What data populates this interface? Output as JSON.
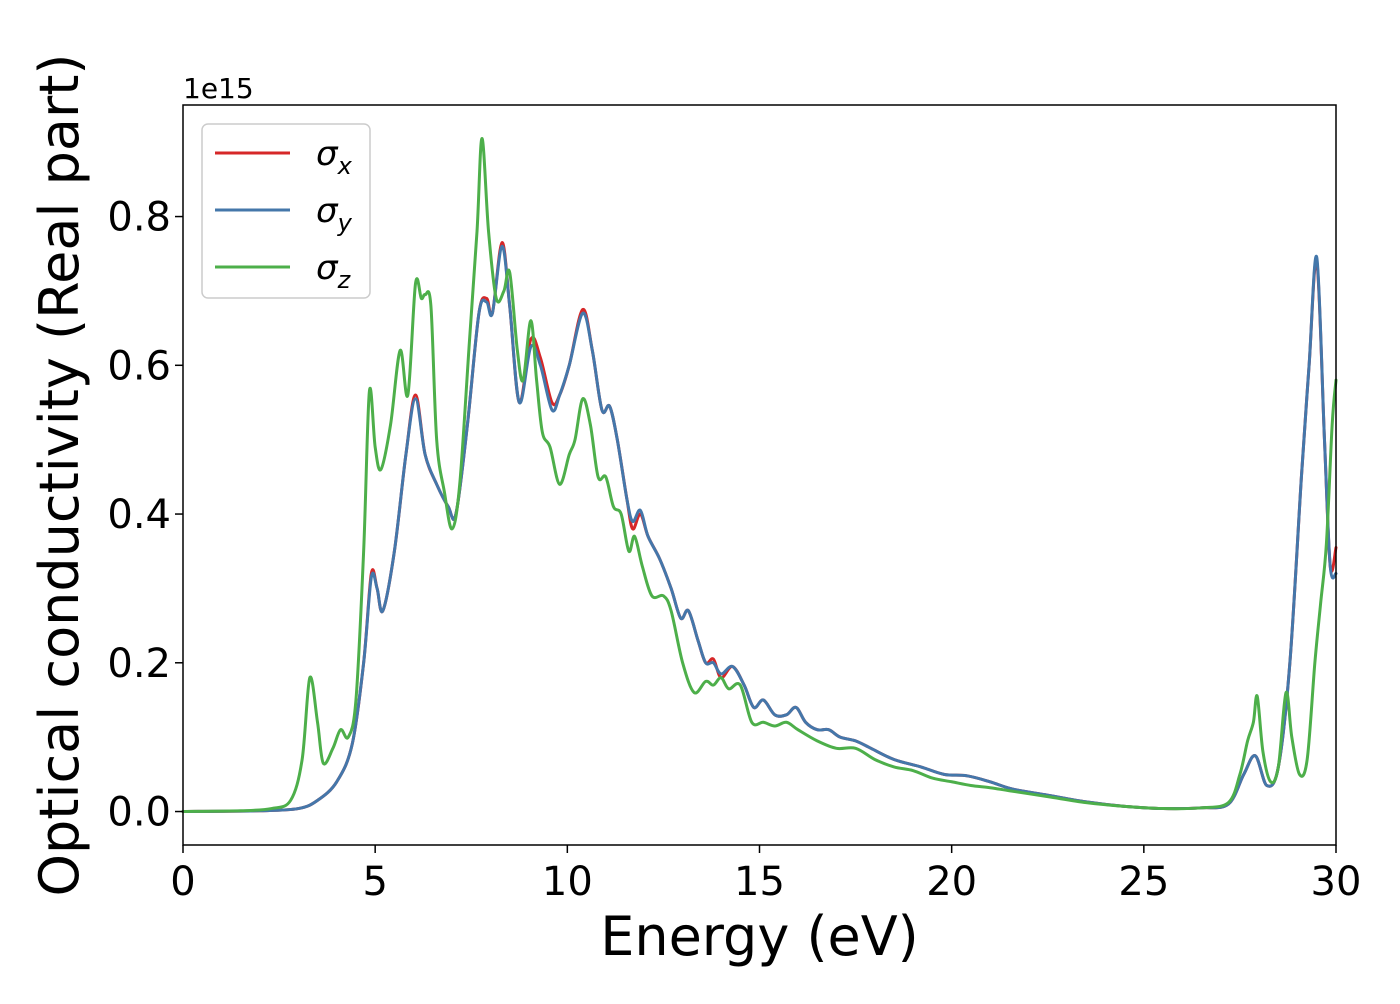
{
  "chart_data": {
    "type": "line",
    "xlabel": "Energy (eV)",
    "ylabel": "Optical conductivity (Real part)",
    "y_offset_text": "1e15",
    "xlim": [
      0,
      30
    ],
    "ylim": [
      -0.045,
      0.95
    ],
    "xticks": [
      0,
      5,
      10,
      15,
      20,
      25,
      30
    ],
    "xtick_labels": [
      "0",
      "5",
      "10",
      "15",
      "20",
      "25",
      "30"
    ],
    "yticks": [
      0.0,
      0.2,
      0.4,
      0.6,
      0.8
    ],
    "ytick_labels": [
      "0.0",
      "0.2",
      "0.4",
      "0.6",
      "0.8"
    ],
    "grid": false,
    "legend_position": "top-left",
    "series": [
      {
        "name": "σx",
        "symbol": "σ",
        "subscript": "x",
        "color": "#d62728",
        "points": [
          [
            0,
            0.0
          ],
          [
            2,
            0.001
          ],
          [
            3,
            0.004
          ],
          [
            3.5,
            0.015
          ],
          [
            4,
            0.04
          ],
          [
            4.4,
            0.09
          ],
          [
            4.7,
            0.2
          ],
          [
            4.9,
            0.32
          ],
          [
            5.05,
            0.3
          ],
          [
            5.2,
            0.27
          ],
          [
            5.5,
            0.35
          ],
          [
            5.8,
            0.48
          ],
          [
            6.05,
            0.56
          ],
          [
            6.3,
            0.48
          ],
          [
            6.6,
            0.44
          ],
          [
            6.9,
            0.41
          ],
          [
            7.1,
            0.4
          ],
          [
            7.4,
            0.52
          ],
          [
            7.7,
            0.67
          ],
          [
            7.9,
            0.69
          ],
          [
            8.05,
            0.67
          ],
          [
            8.3,
            0.765
          ],
          [
            8.5,
            0.68
          ],
          [
            8.75,
            0.55
          ],
          [
            9.05,
            0.635
          ],
          [
            9.3,
            0.61
          ],
          [
            9.6,
            0.55
          ],
          [
            9.8,
            0.56
          ],
          [
            10.05,
            0.6
          ],
          [
            10.4,
            0.675
          ],
          [
            10.65,
            0.62
          ],
          [
            10.9,
            0.54
          ],
          [
            11.1,
            0.545
          ],
          [
            11.3,
            0.5
          ],
          [
            11.55,
            0.42
          ],
          [
            11.7,
            0.38
          ],
          [
            11.9,
            0.4
          ],
          [
            12.1,
            0.37
          ],
          [
            12.4,
            0.34
          ],
          [
            12.7,
            0.3
          ],
          [
            12.95,
            0.26
          ],
          [
            13.15,
            0.27
          ],
          [
            13.4,
            0.23
          ],
          [
            13.6,
            0.2
          ],
          [
            13.8,
            0.205
          ],
          [
            14.0,
            0.18
          ],
          [
            14.3,
            0.195
          ],
          [
            14.6,
            0.17
          ],
          [
            14.85,
            0.14
          ],
          [
            15.1,
            0.15
          ],
          [
            15.4,
            0.13
          ],
          [
            15.7,
            0.13
          ],
          [
            15.95,
            0.14
          ],
          [
            16.2,
            0.12
          ],
          [
            16.5,
            0.11
          ],
          [
            16.8,
            0.11
          ],
          [
            17.1,
            0.1
          ],
          [
            17.5,
            0.095
          ],
          [
            17.9,
            0.085
          ],
          [
            18.5,
            0.07
          ],
          [
            19.2,
            0.06
          ],
          [
            19.8,
            0.05
          ],
          [
            20.4,
            0.048
          ],
          [
            21,
            0.04
          ],
          [
            21.6,
            0.03
          ],
          [
            22.5,
            0.022
          ],
          [
            23.5,
            0.013
          ],
          [
            24.5,
            0.007
          ],
          [
            25.5,
            0.004
          ],
          [
            26.5,
            0.005
          ],
          [
            27.2,
            0.01
          ],
          [
            27.6,
            0.05
          ],
          [
            27.9,
            0.075
          ],
          [
            28.2,
            0.035
          ],
          [
            28.5,
            0.06
          ],
          [
            28.8,
            0.2
          ],
          [
            29.1,
            0.45
          ],
          [
            29.3,
            0.6
          ],
          [
            29.5,
            0.74
          ],
          [
            29.7,
            0.5
          ],
          [
            29.85,
            0.33
          ],
          [
            30,
            0.355
          ]
        ]
      },
      {
        "name": "σy",
        "symbol": "σ",
        "subscript": "y",
        "color": "#4477aa",
        "points": [
          [
            0,
            0.0
          ],
          [
            2,
            0.001
          ],
          [
            3,
            0.004
          ],
          [
            3.5,
            0.015
          ],
          [
            4,
            0.04
          ],
          [
            4.4,
            0.09
          ],
          [
            4.7,
            0.2
          ],
          [
            4.9,
            0.315
          ],
          [
            5.05,
            0.3
          ],
          [
            5.2,
            0.27
          ],
          [
            5.5,
            0.35
          ],
          [
            5.8,
            0.48
          ],
          [
            6.05,
            0.555
          ],
          [
            6.3,
            0.48
          ],
          [
            6.6,
            0.44
          ],
          [
            6.9,
            0.41
          ],
          [
            7.1,
            0.4
          ],
          [
            7.4,
            0.52
          ],
          [
            7.7,
            0.67
          ],
          [
            7.9,
            0.685
          ],
          [
            8.05,
            0.67
          ],
          [
            8.3,
            0.76
          ],
          [
            8.5,
            0.68
          ],
          [
            8.75,
            0.55
          ],
          [
            9.05,
            0.625
          ],
          [
            9.3,
            0.6
          ],
          [
            9.6,
            0.54
          ],
          [
            9.8,
            0.56
          ],
          [
            10.05,
            0.6
          ],
          [
            10.4,
            0.67
          ],
          [
            10.65,
            0.62
          ],
          [
            10.9,
            0.54
          ],
          [
            11.1,
            0.545
          ],
          [
            11.3,
            0.5
          ],
          [
            11.55,
            0.42
          ],
          [
            11.7,
            0.39
          ],
          [
            11.9,
            0.405
          ],
          [
            12.1,
            0.37
          ],
          [
            12.4,
            0.34
          ],
          [
            12.7,
            0.3
          ],
          [
            12.95,
            0.26
          ],
          [
            13.15,
            0.27
          ],
          [
            13.4,
            0.23
          ],
          [
            13.6,
            0.2
          ],
          [
            13.8,
            0.2
          ],
          [
            14.0,
            0.185
          ],
          [
            14.3,
            0.195
          ],
          [
            14.6,
            0.17
          ],
          [
            14.85,
            0.14
          ],
          [
            15.1,
            0.15
          ],
          [
            15.4,
            0.13
          ],
          [
            15.7,
            0.13
          ],
          [
            15.95,
            0.14
          ],
          [
            16.2,
            0.12
          ],
          [
            16.5,
            0.11
          ],
          [
            16.8,
            0.11
          ],
          [
            17.1,
            0.1
          ],
          [
            17.5,
            0.095
          ],
          [
            17.9,
            0.085
          ],
          [
            18.5,
            0.07
          ],
          [
            19.2,
            0.06
          ],
          [
            19.8,
            0.05
          ],
          [
            20.4,
            0.048
          ],
          [
            21,
            0.04
          ],
          [
            21.6,
            0.03
          ],
          [
            22.5,
            0.022
          ],
          [
            23.5,
            0.013
          ],
          [
            24.5,
            0.007
          ],
          [
            25.5,
            0.004
          ],
          [
            26.5,
            0.005
          ],
          [
            27.2,
            0.01
          ],
          [
            27.6,
            0.05
          ],
          [
            27.9,
            0.075
          ],
          [
            28.2,
            0.035
          ],
          [
            28.5,
            0.06
          ],
          [
            28.8,
            0.2
          ],
          [
            29.1,
            0.45
          ],
          [
            29.3,
            0.6
          ],
          [
            29.5,
            0.745
          ],
          [
            29.7,
            0.5
          ],
          [
            29.85,
            0.33
          ],
          [
            30,
            0.32
          ]
        ]
      },
      {
        "name": "σz",
        "symbol": "σ",
        "subscript": "z",
        "color": "#4daf4a",
        "points": [
          [
            0,
            0.0
          ],
          [
            1.5,
            0.001
          ],
          [
            2.3,
            0.004
          ],
          [
            2.8,
            0.015
          ],
          [
            3.1,
            0.07
          ],
          [
            3.3,
            0.18
          ],
          [
            3.5,
            0.12
          ],
          [
            3.65,
            0.065
          ],
          [
            3.9,
            0.085
          ],
          [
            4.1,
            0.11
          ],
          [
            4.3,
            0.1
          ],
          [
            4.5,
            0.15
          ],
          [
            4.7,
            0.35
          ],
          [
            4.85,
            0.565
          ],
          [
            5.0,
            0.49
          ],
          [
            5.15,
            0.46
          ],
          [
            5.4,
            0.52
          ],
          [
            5.65,
            0.62
          ],
          [
            5.85,
            0.56
          ],
          [
            6.05,
            0.71
          ],
          [
            6.2,
            0.69
          ],
          [
            6.3,
            0.695
          ],
          [
            6.45,
            0.68
          ],
          [
            6.6,
            0.5
          ],
          [
            6.8,
            0.43
          ],
          [
            7.0,
            0.38
          ],
          [
            7.2,
            0.44
          ],
          [
            7.45,
            0.63
          ],
          [
            7.65,
            0.78
          ],
          [
            7.78,
            0.905
          ],
          [
            7.95,
            0.78
          ],
          [
            8.15,
            0.69
          ],
          [
            8.35,
            0.7
          ],
          [
            8.5,
            0.725
          ],
          [
            8.7,
            0.62
          ],
          [
            8.85,
            0.58
          ],
          [
            9.05,
            0.66
          ],
          [
            9.2,
            0.58
          ],
          [
            9.35,
            0.51
          ],
          [
            9.55,
            0.49
          ],
          [
            9.8,
            0.44
          ],
          [
            10.05,
            0.48
          ],
          [
            10.2,
            0.5
          ],
          [
            10.4,
            0.555
          ],
          [
            10.6,
            0.52
          ],
          [
            10.8,
            0.45
          ],
          [
            11.0,
            0.45
          ],
          [
            11.2,
            0.41
          ],
          [
            11.4,
            0.4
          ],
          [
            11.6,
            0.35
          ],
          [
            11.75,
            0.37
          ],
          [
            11.95,
            0.33
          ],
          [
            12.2,
            0.29
          ],
          [
            12.5,
            0.29
          ],
          [
            12.7,
            0.27
          ],
          [
            13.0,
            0.2
          ],
          [
            13.3,
            0.16
          ],
          [
            13.6,
            0.175
          ],
          [
            13.8,
            0.17
          ],
          [
            14.0,
            0.18
          ],
          [
            14.2,
            0.165
          ],
          [
            14.5,
            0.17
          ],
          [
            14.8,
            0.12
          ],
          [
            15.1,
            0.12
          ],
          [
            15.4,
            0.115
          ],
          [
            15.7,
            0.12
          ],
          [
            16.0,
            0.11
          ],
          [
            16.5,
            0.095
          ],
          [
            17.0,
            0.085
          ],
          [
            17.5,
            0.085
          ],
          [
            18.0,
            0.07
          ],
          [
            18.5,
            0.06
          ],
          [
            19.0,
            0.055
          ],
          [
            19.5,
            0.045
          ],
          [
            20.0,
            0.04
          ],
          [
            20.5,
            0.035
          ],
          [
            21.0,
            0.032
          ],
          [
            21.5,
            0.028
          ],
          [
            22.5,
            0.02
          ],
          [
            23.5,
            0.012
          ],
          [
            24.5,
            0.007
          ],
          [
            25.5,
            0.004
          ],
          [
            26.5,
            0.005
          ],
          [
            27.2,
            0.012
          ],
          [
            27.5,
            0.05
          ],
          [
            27.7,
            0.095
          ],
          [
            27.85,
            0.12
          ],
          [
            27.95,
            0.155
          ],
          [
            28.1,
            0.08
          ],
          [
            28.3,
            0.04
          ],
          [
            28.5,
            0.06
          ],
          [
            28.7,
            0.16
          ],
          [
            28.85,
            0.1
          ],
          [
            29.05,
            0.05
          ],
          [
            29.25,
            0.07
          ],
          [
            29.45,
            0.2
          ],
          [
            29.6,
            0.28
          ],
          [
            29.75,
            0.36
          ],
          [
            29.9,
            0.52
          ],
          [
            30,
            0.58
          ]
        ]
      }
    ]
  }
}
